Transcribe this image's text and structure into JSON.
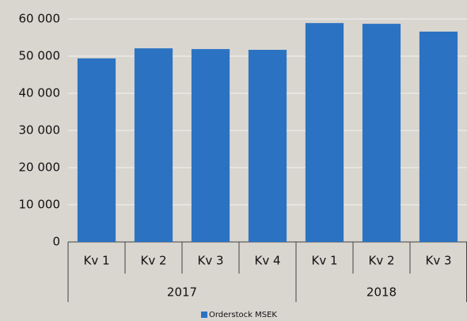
{
  "chart_data": {
    "type": "bar",
    "groups": [
      {
        "name": "2017",
        "categories": [
          "Kv 1",
          "Kv 2",
          "Kv 3",
          "Kv 4"
        ]
      },
      {
        "name": "2018",
        "categories": [
          "Kv 1",
          "Kv 2",
          "Kv 3"
        ]
      }
    ],
    "series": [
      {
        "name": "Orderstock MSEK",
        "color": "#2b73c2",
        "values": [
          49400,
          52100,
          51900,
          51700,
          58900,
          58700,
          56600
        ]
      }
    ],
    "ylim": [
      0,
      60000
    ],
    "yticks": [
      0,
      {
        "value": 10000,
        "label": "10 000"
      },
      {
        "value": 20000,
        "label": "20 000"
      },
      {
        "value": 30000,
        "label": "30 000"
      },
      {
        "value": 40000,
        "label": "40 000"
      },
      {
        "value": 50000,
        "label": "50 000"
      },
      {
        "value": 60000,
        "label": "60 000"
      }
    ],
    "grid": true,
    "legend": "bottom"
  }
}
